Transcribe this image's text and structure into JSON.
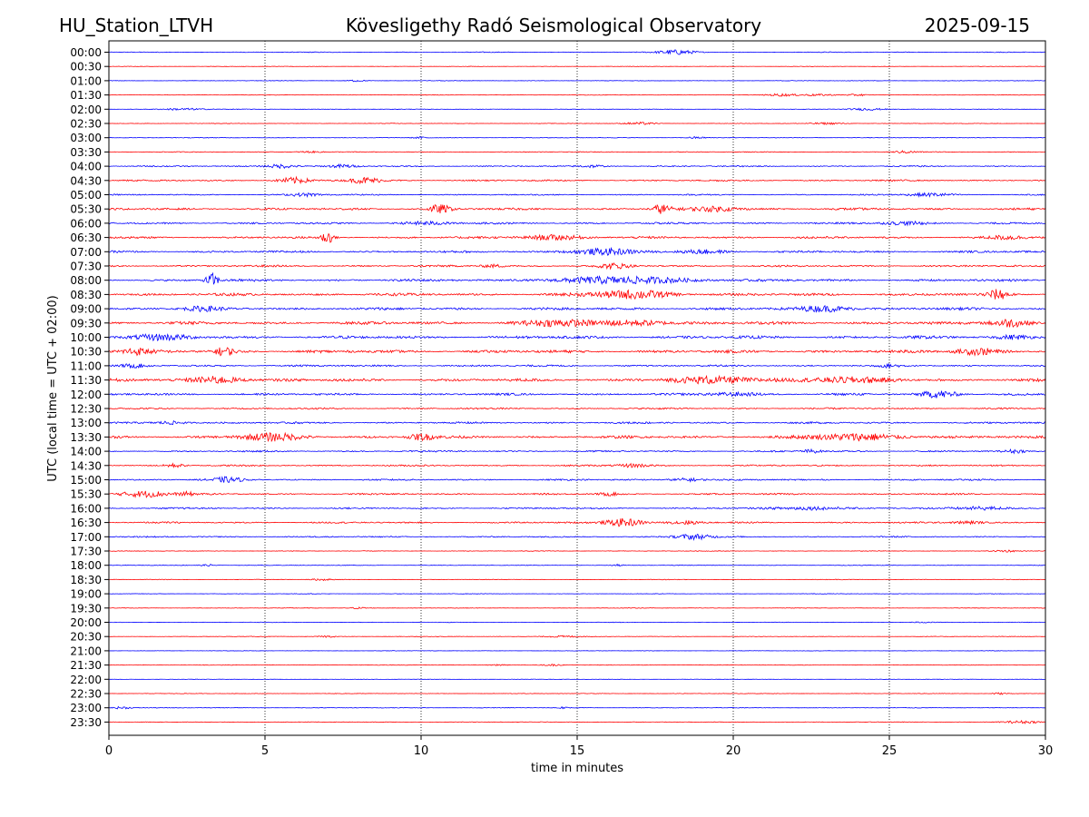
{
  "header": {
    "station": "HU_Station_LTVH",
    "observatory": "Kövesligethy Radó Seismological Observatory",
    "date": "2025-09-15"
  },
  "chart_data": {
    "type": "line",
    "title": "Kövesligethy Radó Seismological Observatory",
    "xlabel": "time in minutes",
    "ylabel": "UTC (local time = UTC + 02:00)",
    "xlim": [
      0,
      30
    ],
    "x_ticks": [
      0,
      5,
      10,
      15,
      20,
      25,
      30
    ],
    "grid": "vertical dotted lines at x ticks",
    "legend": "none",
    "colors": {
      "even_rows": "#0000ff",
      "odd_rows": "#ff0000"
    },
    "rows": [
      {
        "label": "00:00",
        "amp": 0.15,
        "events": [
          {
            "t": 18.2,
            "a": 0.8,
            "w": 0.6
          }
        ]
      },
      {
        "label": "00:30",
        "amp": 0.08,
        "events": []
      },
      {
        "label": "01:00",
        "amp": 0.1,
        "events": [
          {
            "t": 7.9,
            "a": 0.3,
            "w": 0.3
          }
        ]
      },
      {
        "label": "01:30",
        "amp": 0.1,
        "events": [
          {
            "t": 21.5,
            "a": 0.4,
            "w": 0.4
          },
          {
            "t": 22.6,
            "a": 0.3,
            "w": 0.7
          },
          {
            "t": 24.0,
            "a": 0.3,
            "w": 0.3
          }
        ]
      },
      {
        "label": "02:00",
        "amp": 0.1,
        "events": [
          {
            "t": 2.4,
            "a": 0.35,
            "w": 0.7
          },
          {
            "t": 24.3,
            "a": 0.4,
            "w": 0.6
          }
        ]
      },
      {
        "label": "02:30",
        "amp": 0.1,
        "events": [
          {
            "t": 17.0,
            "a": 0.4,
            "w": 0.5
          },
          {
            "t": 23.0,
            "a": 0.3,
            "w": 0.6
          }
        ]
      },
      {
        "label": "03:00",
        "amp": 0.12,
        "events": [
          {
            "t": 10.0,
            "a": 0.3,
            "w": 0.3
          },
          {
            "t": 18.8,
            "a": 0.3,
            "w": 0.3
          }
        ]
      },
      {
        "label": "03:30",
        "amp": 0.15,
        "events": [
          {
            "t": 6.4,
            "a": 0.3,
            "w": 0.4
          },
          {
            "t": 25.5,
            "a": 0.4,
            "w": 0.4
          }
        ]
      },
      {
        "label": "04:00",
        "amp": 0.25,
        "events": [
          {
            "t": 5.5,
            "a": 0.7,
            "w": 0.5
          },
          {
            "t": 7.5,
            "a": 0.5,
            "w": 0.4
          },
          {
            "t": 15.5,
            "a": 0.4,
            "w": 0.4
          }
        ]
      },
      {
        "label": "04:30",
        "amp": 0.3,
        "events": [
          {
            "t": 5.9,
            "a": 1.0,
            "w": 0.5
          },
          {
            "t": 8.2,
            "a": 1.0,
            "w": 0.5
          }
        ]
      },
      {
        "label": "05:00",
        "amp": 0.25,
        "events": [
          {
            "t": 6.3,
            "a": 0.5,
            "w": 0.5
          },
          {
            "t": 26.3,
            "a": 0.6,
            "w": 0.7
          }
        ]
      },
      {
        "label": "05:30",
        "amp": 0.4,
        "events": [
          {
            "t": 10.6,
            "a": 1.4,
            "w": 0.35
          },
          {
            "t": 17.7,
            "a": 1.5,
            "w": 0.3
          },
          {
            "t": 19.5,
            "a": 0.8,
            "w": 0.8
          }
        ]
      },
      {
        "label": "06:00",
        "amp": 0.35,
        "events": [
          {
            "t": 10.2,
            "a": 0.5,
            "w": 0.8
          },
          {
            "t": 25.5,
            "a": 0.5,
            "w": 0.8
          }
        ]
      },
      {
        "label": "06:30",
        "amp": 0.4,
        "events": [
          {
            "t": 7.0,
            "a": 2.0,
            "w": 0.2
          },
          {
            "t": 14.2,
            "a": 0.8,
            "w": 1.0
          },
          {
            "t": 28.8,
            "a": 0.6,
            "w": 0.6
          }
        ]
      },
      {
        "label": "07:00",
        "amp": 0.4,
        "events": [
          {
            "t": 15.8,
            "a": 1.0,
            "w": 1.0
          },
          {
            "t": 19.0,
            "a": 0.6,
            "w": 0.8
          }
        ]
      },
      {
        "label": "07:30",
        "amp": 0.35,
        "events": [
          {
            "t": 16.2,
            "a": 0.8,
            "w": 0.5
          },
          {
            "t": 12.3,
            "a": 0.5,
            "w": 0.4
          }
        ]
      },
      {
        "label": "08:00",
        "amp": 0.45,
        "events": [
          {
            "t": 3.3,
            "a": 2.3,
            "w": 0.2
          },
          {
            "t": 16.5,
            "a": 1.1,
            "w": 2.2
          }
        ]
      },
      {
        "label": "08:30",
        "amp": 0.5,
        "events": [
          {
            "t": 16.8,
            "a": 1.3,
            "w": 1.3
          },
          {
            "t": 28.5,
            "a": 1.6,
            "w": 0.35
          }
        ]
      },
      {
        "label": "09:00",
        "amp": 0.5,
        "events": [
          {
            "t": 23.0,
            "a": 1.0,
            "w": 0.8
          },
          {
            "t": 3.0,
            "a": 0.6,
            "w": 0.6
          }
        ]
      },
      {
        "label": "09:30",
        "amp": 0.55,
        "events": [
          {
            "t": 14.5,
            "a": 1.0,
            "w": 1.2
          },
          {
            "t": 17.0,
            "a": 0.9,
            "w": 1.0
          },
          {
            "t": 28.8,
            "a": 1.4,
            "w": 0.6
          }
        ]
      },
      {
        "label": "10:00",
        "amp": 0.55,
        "events": [
          {
            "t": 1.5,
            "a": 0.8,
            "w": 1.0
          },
          {
            "t": 29.0,
            "a": 0.6,
            "w": 0.6
          }
        ]
      },
      {
        "label": "10:30",
        "amp": 0.55,
        "events": [
          {
            "t": 0.8,
            "a": 1.0,
            "w": 0.5
          },
          {
            "t": 3.7,
            "a": 1.4,
            "w": 0.3
          },
          {
            "t": 27.8,
            "a": 1.1,
            "w": 0.7
          }
        ]
      },
      {
        "label": "11:00",
        "amp": 0.35,
        "events": [
          {
            "t": 0.8,
            "a": 0.5,
            "w": 0.4
          },
          {
            "t": 25.0,
            "a": 0.5,
            "w": 0.3
          }
        ]
      },
      {
        "label": "11:30",
        "amp": 0.55,
        "events": [
          {
            "t": 3.5,
            "a": 1.2,
            "w": 0.8
          },
          {
            "t": 19.5,
            "a": 1.0,
            "w": 1.5
          },
          {
            "t": 23.5,
            "a": 0.8,
            "w": 1.5
          }
        ]
      },
      {
        "label": "12:00",
        "amp": 0.4,
        "events": [
          {
            "t": 26.6,
            "a": 1.2,
            "w": 0.6
          },
          {
            "t": 20.0,
            "a": 0.6,
            "w": 0.8
          }
        ]
      },
      {
        "label": "12:30",
        "amp": 0.3,
        "events": []
      },
      {
        "label": "13:00",
        "amp": 0.35,
        "events": [
          {
            "t": 2.0,
            "a": 0.6,
            "w": 0.5
          }
        ]
      },
      {
        "label": "13:30",
        "amp": 0.5,
        "events": [
          {
            "t": 5.2,
            "a": 1.1,
            "w": 1.0
          },
          {
            "t": 10.0,
            "a": 1.0,
            "w": 0.4
          },
          {
            "t": 24.0,
            "a": 1.1,
            "w": 1.5
          }
        ]
      },
      {
        "label": "14:00",
        "amp": 0.3,
        "events": [
          {
            "t": 22.5,
            "a": 0.6,
            "w": 0.3
          },
          {
            "t": 29.0,
            "a": 0.5,
            "w": 0.3
          }
        ]
      },
      {
        "label": "14:30",
        "amp": 0.3,
        "events": [
          {
            "t": 2.1,
            "a": 0.6,
            "w": 0.3
          },
          {
            "t": 16.8,
            "a": 0.6,
            "w": 0.5
          }
        ]
      },
      {
        "label": "15:00",
        "amp": 0.3,
        "events": [
          {
            "t": 3.8,
            "a": 0.8,
            "w": 0.5
          },
          {
            "t": 18.5,
            "a": 0.6,
            "w": 0.5
          }
        ]
      },
      {
        "label": "15:30",
        "amp": 0.3,
        "events": [
          {
            "t": 1.2,
            "a": 1.1,
            "w": 0.8
          },
          {
            "t": 2.5,
            "a": 0.6,
            "w": 0.2
          },
          {
            "t": 16.0,
            "a": 0.5,
            "w": 0.3
          }
        ]
      },
      {
        "label": "16:00",
        "amp": 0.3,
        "events": [
          {
            "t": 22.5,
            "a": 0.6,
            "w": 1.0
          },
          {
            "t": 28.0,
            "a": 0.6,
            "w": 0.8
          }
        ]
      },
      {
        "label": "16:30",
        "amp": 0.3,
        "events": [
          {
            "t": 16.5,
            "a": 1.4,
            "w": 0.6
          },
          {
            "t": 18.5,
            "a": 0.6,
            "w": 0.5
          },
          {
            "t": 27.5,
            "a": 0.5,
            "w": 0.5
          }
        ]
      },
      {
        "label": "17:00",
        "amp": 0.25,
        "events": [
          {
            "t": 18.7,
            "a": 0.9,
            "w": 0.6
          }
        ]
      },
      {
        "label": "17:30",
        "amp": 0.12,
        "events": [
          {
            "t": 28.7,
            "a": 0.4,
            "w": 0.4
          }
        ]
      },
      {
        "label": "18:00",
        "amp": 0.12,
        "events": [
          {
            "t": 3.2,
            "a": 0.3,
            "w": 0.3
          },
          {
            "t": 16.3,
            "a": 0.3,
            "w": 0.2
          }
        ]
      },
      {
        "label": "18:30",
        "amp": 0.12,
        "events": [
          {
            "t": 6.8,
            "a": 0.3,
            "w": 0.3
          }
        ]
      },
      {
        "label": "19:00",
        "amp": 0.1,
        "events": []
      },
      {
        "label": "19:30",
        "amp": 0.1,
        "events": [
          {
            "t": 8.0,
            "a": 0.3,
            "w": 0.3
          }
        ]
      },
      {
        "label": "20:00",
        "amp": 0.1,
        "events": [
          {
            "t": 26.0,
            "a": 0.2,
            "w": 0.4
          }
        ]
      },
      {
        "label": "20:30",
        "amp": 0.1,
        "events": [
          {
            "t": 14.5,
            "a": 0.3,
            "w": 0.6
          },
          {
            "t": 7.0,
            "a": 0.3,
            "w": 0.3
          }
        ]
      },
      {
        "label": "21:00",
        "amp": 0.08,
        "events": []
      },
      {
        "label": "21:30",
        "amp": 0.1,
        "events": [
          {
            "t": 12.5,
            "a": 0.25,
            "w": 0.3
          },
          {
            "t": 14.2,
            "a": 0.25,
            "w": 0.3
          }
        ]
      },
      {
        "label": "22:00",
        "amp": 0.08,
        "events": []
      },
      {
        "label": "22:30",
        "amp": 0.1,
        "events": [
          {
            "t": 28.5,
            "a": 0.3,
            "w": 0.3
          }
        ]
      },
      {
        "label": "23:00",
        "amp": 0.12,
        "events": [
          {
            "t": 0.4,
            "a": 0.4,
            "w": 0.3
          },
          {
            "t": 14.5,
            "a": 0.3,
            "w": 0.2
          }
        ]
      },
      {
        "label": "23:30",
        "amp": 0.12,
        "events": [
          {
            "t": 29.2,
            "a": 0.5,
            "w": 0.6
          }
        ]
      }
    ]
  }
}
